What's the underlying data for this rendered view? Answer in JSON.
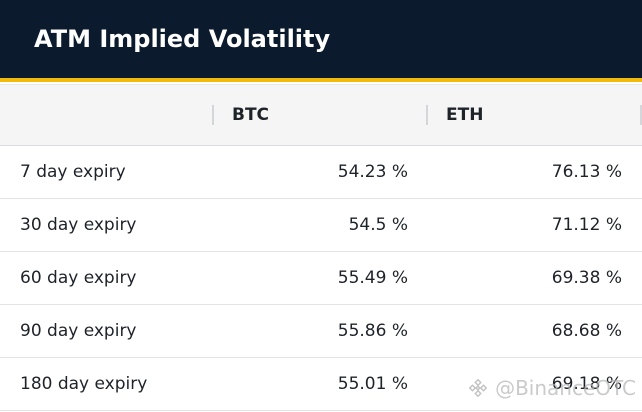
{
  "header": {
    "title": "ATM Implied Volatility"
  },
  "table": {
    "columns": [
      "",
      "BTC",
      "ETH"
    ],
    "rows": [
      {
        "label": "7 day expiry",
        "btc": "54.23 %",
        "eth": "76.13 %"
      },
      {
        "label": "30 day expiry",
        "btc": "54.5 %",
        "eth": "71.12 %"
      },
      {
        "label": "60 day expiry",
        "btc": "55.49 %",
        "eth": "69.38 %"
      },
      {
        "label": "90 day expiry",
        "btc": "55.86 %",
        "eth": "68.68 %"
      },
      {
        "label": "180 day expiry",
        "btc": "55.01 %",
        "eth": "69.18 %"
      }
    ]
  },
  "watermark": {
    "text": "@BinanceOTC"
  },
  "colors": {
    "header_bg": "#0b1a2c",
    "accent": "#f0b90b"
  }
}
